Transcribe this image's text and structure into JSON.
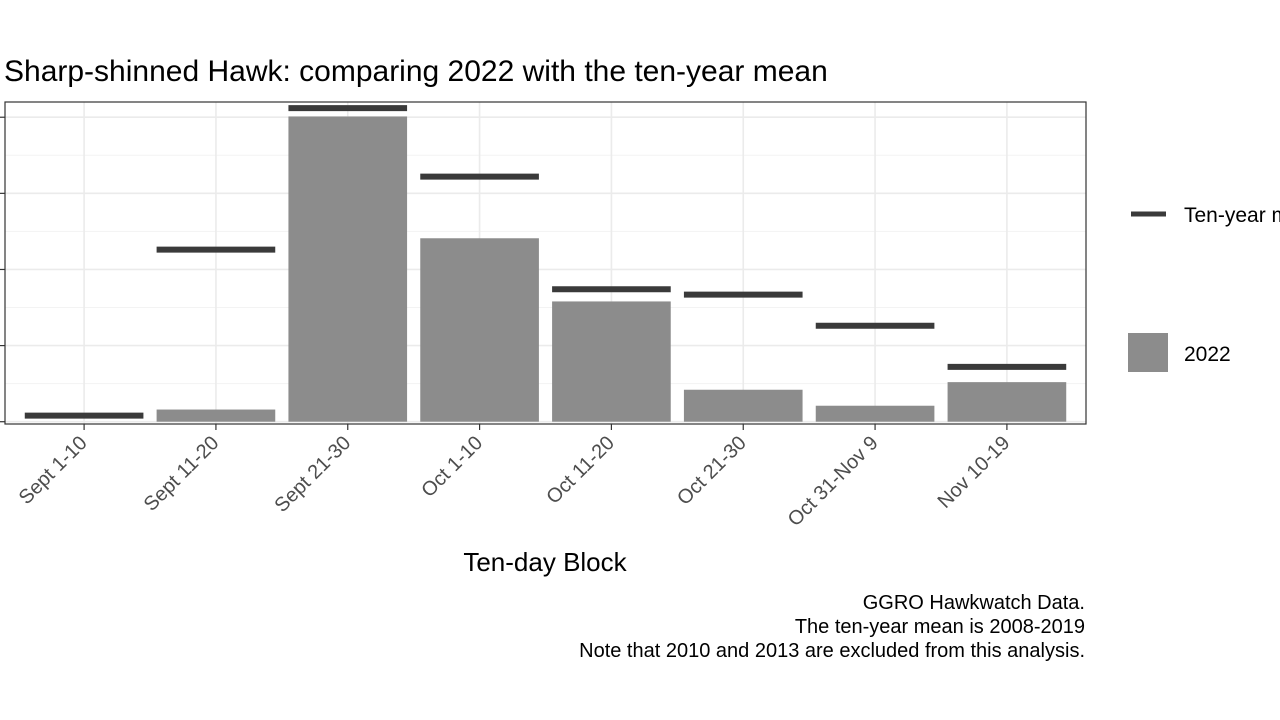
{
  "chart_data": {
    "type": "bar",
    "title": "Sharp-shinned Hawk: comparing 2022 with the ten-year mean",
    "xlabel": "Ten-day Block",
    "ylabel": "",
    "categories": [
      "Sept 1-10",
      "Sept 11-20",
      "Sept 21-30",
      "Oct 1-10",
      "Oct 11-20",
      "Oct 21-30",
      "Oct 31-Nov 9",
      "Nov 10-19"
    ],
    "ylim": [
      -3,
      420
    ],
    "grid": true,
    "legend_position": "right",
    "series": [
      {
        "name": "2022",
        "kind": "bar",
        "color": "#8c8c8c",
        "values": [
          0,
          16,
          401,
          241,
          158,
          42,
          21,
          52
        ]
      },
      {
        "name": "Ten-year mean",
        "kind": "segment",
        "color": "#3a3a3a",
        "values": [
          8,
          226,
          412,
          322,
          174,
          167,
          126,
          72
        ]
      }
    ],
    "legend": {
      "mean_label": "Ten-year mean",
      "bar_label": "2022"
    },
    "caption": [
      "GGRO Hawkwatch Data.",
      "The ten-year mean is 2008-2019",
      "Note that 2010 and 2013 are excluded from this analysis."
    ]
  }
}
